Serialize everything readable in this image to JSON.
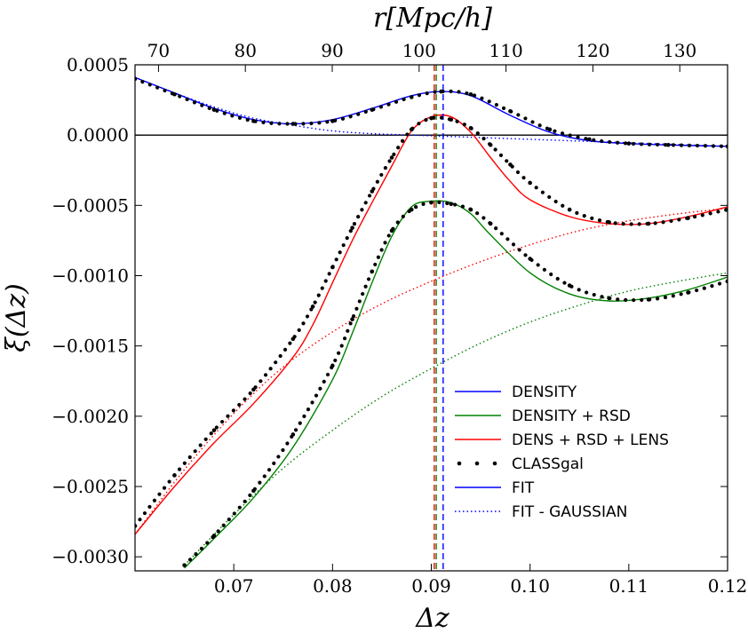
{
  "chart_data": {
    "type": "line",
    "xlabel": "Δz",
    "ylabel": "ξ(Δz)",
    "top_xlabel": "r[Mpc/h]",
    "xlim": [
      0.06,
      0.12
    ],
    "ylim": [
      -0.0031,
      0.0005
    ],
    "top_xlim": [
      67.3,
      135.5
    ],
    "x_ticks": [
      0.07,
      0.08,
      0.09,
      0.1,
      0.11,
      0.12
    ],
    "x_tick_labels": [
      "0.07",
      "0.08",
      "0.09",
      "0.10",
      "0.11",
      "0.12"
    ],
    "y_ticks": [
      0.0005,
      0.0,
      -0.0005,
      -0.001,
      -0.0015,
      -0.002,
      -0.0025,
      -0.003
    ],
    "y_tick_labels": [
      "0.0005",
      "0.0000",
      "−0.0005",
      "−0.0010",
      "−0.0015",
      "−0.0020",
      "−0.0025",
      "−0.0030"
    ],
    "top_x_ticks": [
      70,
      80,
      90,
      100,
      110,
      120,
      130
    ],
    "top_x_tick_labels": [
      "70",
      "80",
      "90",
      "100",
      "110",
      "120",
      "130"
    ],
    "legend": [
      {
        "label": "DENSITY",
        "color": "#0000ff",
        "style": "solid"
      },
      {
        "label": "DENSITY + RSD",
        "color": "#008000",
        "style": "solid"
      },
      {
        "label": "DENS + RSD + LENS",
        "color": "#ff0000",
        "style": "solid"
      },
      {
        "label": "CLASSgal",
        "color": "#000000",
        "style": "dots"
      },
      {
        "label": "FIT",
        "color": "#0000ff",
        "style": "solid"
      },
      {
        "label": "FIT - GAUSSIAN",
        "color": "#0000ff",
        "style": "dotted"
      }
    ],
    "series": [
      {
        "name": "DENSITY",
        "color": "#0000ff",
        "style": "solid",
        "x": [
          0.06,
          0.064,
          0.068,
          0.072,
          0.076,
          0.08,
          0.084,
          0.088,
          0.091,
          0.094,
          0.098,
          0.102,
          0.106,
          0.11,
          0.114,
          0.12
        ],
        "y": [
          0.00041,
          0.0003,
          0.00019,
          0.00011,
          8e-05,
          0.00011,
          0.00019,
          0.00028,
          0.00031,
          0.00028,
          0.00014,
          2e-05,
          -4e-05,
          -6e-05,
          -7e-05,
          -8e-05
        ]
      },
      {
        "name": "DENSITY + RSD",
        "color": "#008000",
        "style": "solid",
        "x": [
          0.065,
          0.068,
          0.072,
          0.076,
          0.08,
          0.082,
          0.084,
          0.086,
          0.088,
          0.09,
          0.092,
          0.094,
          0.096,
          0.1,
          0.104,
          0.108,
          0.112,
          0.116,
          0.12
        ],
        "y": [
          -0.00308,
          -0.00287,
          -0.00258,
          -0.00222,
          -0.00174,
          -0.00141,
          -0.00105,
          -0.00072,
          -0.00051,
          -0.00047,
          -0.00048,
          -0.00056,
          -0.00071,
          -0.00098,
          -0.00113,
          -0.00118,
          -0.00116,
          -0.0011,
          -0.00101
        ]
      },
      {
        "name": "DENS + RSD + LENS",
        "color": "#ff0000",
        "style": "solid",
        "x": [
          0.06,
          0.064,
          0.068,
          0.072,
          0.076,
          0.078,
          0.08,
          0.082,
          0.084,
          0.086,
          0.088,
          0.09,
          0.092,
          0.094,
          0.096,
          0.098,
          0.1,
          0.104,
          0.108,
          0.112,
          0.116,
          0.12
        ],
        "y": [
          -0.00284,
          -0.0025,
          -0.00219,
          -0.00191,
          -0.00158,
          -0.00135,
          -0.00105,
          -0.00075,
          -0.00048,
          -0.00022,
          3e-05,
          0.00013,
          0.00013,
          2e-05,
          -0.00016,
          -0.00033,
          -0.00046,
          -0.00058,
          -0.00063,
          -0.00063,
          -0.00058,
          -0.00051
        ]
      },
      {
        "name": "CLASSgal",
        "color": "#000000",
        "style": "dots",
        "x": [
          0.06,
          0.064,
          0.068,
          0.072,
          0.076,
          0.08,
          0.084,
          0.088,
          0.091,
          0.094,
          0.098,
          0.102,
          0.106,
          0.11,
          0.114,
          0.12
        ],
        "y": [
          0.0004,
          0.00029,
          0.00018,
          0.0001,
          8e-05,
          0.0001,
          0.00018,
          0.00027,
          0.00031,
          0.00029,
          0.00017,
          4e-05,
          -3e-05,
          -6e-05,
          -7e-05,
          -8e-05
        ]
      },
      {
        "name": "CLASSgal",
        "color": "#000000",
        "style": "dots",
        "x": [
          0.065,
          0.068,
          0.072,
          0.076,
          0.08,
          0.082,
          0.084,
          0.086,
          0.088,
          0.09,
          0.092,
          0.094,
          0.096,
          0.1,
          0.104,
          0.108,
          0.112,
          0.116,
          0.12
        ],
        "y": [
          -0.00306,
          -0.00285,
          -0.00253,
          -0.00213,
          -0.00164,
          -0.00131,
          -0.00097,
          -0.00068,
          -0.00053,
          -0.00048,
          -0.00049,
          -0.00053,
          -0.00063,
          -0.00088,
          -0.00107,
          -0.00116,
          -0.00117,
          -0.00112,
          -0.00104
        ]
      },
      {
        "name": "CLASSgal",
        "color": "#000000",
        "style": "dots",
        "x": [
          0.06,
          0.064,
          0.068,
          0.072,
          0.076,
          0.078,
          0.08,
          0.082,
          0.084,
          0.086,
          0.088,
          0.09,
          0.092,
          0.094,
          0.096,
          0.098,
          0.1,
          0.104,
          0.108,
          0.112,
          0.116,
          0.12
        ],
        "y": [
          -0.00278,
          -0.00242,
          -0.0021,
          -0.00181,
          -0.00145,
          -0.00122,
          -0.00094,
          -0.00066,
          -0.0004,
          -0.00016,
          4e-05,
          0.00012,
          0.00011,
          5e-05,
          -7e-05,
          -0.00021,
          -0.00034,
          -0.00053,
          -0.00062,
          -0.00063,
          -0.00059,
          -0.00053
        ]
      },
      {
        "name": "FIT - GAUSSIAN",
        "color": "#0000ff",
        "style": "dotted",
        "x": [
          0.06,
          0.064,
          0.068,
          0.072,
          0.076,
          0.08,
          0.084,
          0.088,
          0.092,
          0.096,
          0.1,
          0.104,
          0.108,
          0.112,
          0.116,
          0.12
        ],
        "y": [
          0.00041,
          0.0003,
          0.0002,
          0.00012,
          7e-05,
          3e-05,
          1e-05,
          0.0,
          -1e-05,
          -2e-05,
          -3e-05,
          -4e-05,
          -5e-05,
          -6e-05,
          -7e-05,
          -8e-05
        ]
      },
      {
        "name": "FIT - GAUSSIAN",
        "color": "#008000",
        "style": "dotted",
        "x": [
          0.065,
          0.07,
          0.075,
          0.08,
          0.085,
          0.09,
          0.095,
          0.1,
          0.105,
          0.11,
          0.115,
          0.12
        ],
        "y": [
          -0.00306,
          -0.0027,
          -0.00237,
          -0.0021,
          -0.00186,
          -0.00166,
          -0.00148,
          -0.00133,
          -0.00121,
          -0.00111,
          -0.00104,
          -0.00098
        ]
      },
      {
        "name": "FIT - GAUSSIAN",
        "color": "#ff0000",
        "style": "dotted",
        "x": [
          0.06,
          0.065,
          0.07,
          0.075,
          0.08,
          0.085,
          0.09,
          0.095,
          0.1,
          0.105,
          0.11,
          0.115,
          0.12
        ],
        "y": [
          -0.00284,
          -0.00238,
          -0.00198,
          -0.00165,
          -0.0014,
          -0.0012,
          -0.00104,
          -0.0009,
          -0.00078,
          -0.00068,
          -0.00061,
          -0.00056,
          -0.00052
        ]
      }
    ],
    "hlines": [
      {
        "y": 0.0,
        "color": "#000000"
      }
    ],
    "vlines": [
      {
        "x": 0.0903,
        "color": "#ff0000",
        "style": "dashed"
      },
      {
        "x": 0.0905,
        "color": "#008000",
        "style": "dashed"
      },
      {
        "x": 0.0912,
        "color": "#0000ff",
        "style": "dashed"
      }
    ]
  }
}
